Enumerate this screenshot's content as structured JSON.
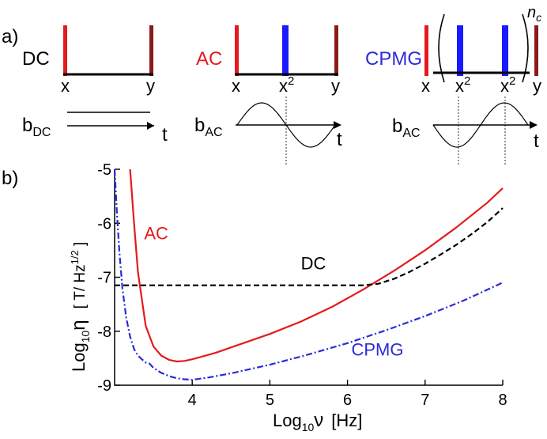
{
  "panel_a": {
    "label": "a)",
    "dc": {
      "name": "DC",
      "x": "x",
      "y": "y",
      "b": "b",
      "b_sub": "DC",
      "t": "t"
    },
    "ac": {
      "name": "AC",
      "x": "x",
      "mid": "x",
      "mid_sup": "2",
      "y": "y",
      "b": "b",
      "b_sub": "AC",
      "t": "t"
    },
    "cpmg": {
      "name": "CPMG",
      "x": "x",
      "mid1": "x",
      "mid1_sup": "2",
      "mid2": "x",
      "mid2_sup": "2",
      "y": "y",
      "n": "n",
      "n_sub": "c",
      "b": "b",
      "b_sub": "AC",
      "t": "t"
    }
  },
  "panel_b": {
    "label": "b)"
  },
  "colors": {
    "ac": "#e41a1c",
    "cpmg": "#2b2bd6",
    "dc": "#000000",
    "dark_red": "#8b1a1a",
    "blue_pulse": "#1a1aff"
  },
  "chart_data": {
    "type": "line",
    "title": "",
    "xlabel": {
      "base": "Log",
      "sub": "10",
      "sym": "ν",
      "unit": "[Hz]"
    },
    "ylabel": {
      "base": "Log",
      "sub": "10",
      "sym": "η",
      "unit_pre": "[ T/ Hz",
      "unit_sup": "1/2",
      "unit_post": " ]"
    },
    "xlim": [
      3.0,
      8.0
    ],
    "ylim": [
      -9.0,
      -5.0
    ],
    "x_ticks": [
      4,
      5,
      6,
      7,
      8
    ],
    "y_ticks": [
      -9,
      -8,
      -7,
      -6,
      -5
    ],
    "grid": false,
    "series": [
      {
        "name": "AC",
        "color": "#e41a1c",
        "style": "solid",
        "x": [
          3.2,
          3.25,
          3.3,
          3.4,
          3.5,
          3.6,
          3.7,
          3.8,
          3.9,
          4.0,
          4.3,
          4.6,
          5.0,
          5.4,
          5.8,
          6.2,
          6.6,
          7.0,
          7.4,
          7.8,
          8.0
        ],
        "y": [
          -5.0,
          -6.0,
          -6.9,
          -7.9,
          -8.28,
          -8.45,
          -8.53,
          -8.56,
          -8.55,
          -8.52,
          -8.4,
          -8.25,
          -8.05,
          -7.82,
          -7.55,
          -7.23,
          -6.88,
          -6.5,
          -6.08,
          -5.62,
          -5.35
        ]
      },
      {
        "name": "DC",
        "color": "#000000",
        "style": "dashed",
        "x": [
          3.0,
          3.5,
          4.0,
          5.0,
          6.0,
          6.2,
          6.4,
          6.6,
          6.8,
          7.0,
          7.2,
          7.4,
          7.6,
          7.8,
          8.0
        ],
        "y": [
          -7.15,
          -7.15,
          -7.15,
          -7.15,
          -7.15,
          -7.15,
          -7.12,
          -7.03,
          -6.9,
          -6.75,
          -6.58,
          -6.4,
          -6.2,
          -5.98,
          -5.72
        ]
      },
      {
        "name": "CPMG",
        "color": "#2b2bd6",
        "style": "dashdot",
        "x": [
          3.0,
          3.03,
          3.06,
          3.1,
          3.15,
          3.2,
          3.25,
          3.3,
          3.35,
          3.4,
          3.45,
          3.5,
          3.6,
          3.7,
          3.8,
          3.9,
          4.0,
          4.2,
          4.5,
          5.0,
          5.5,
          6.0,
          6.5,
          7.0,
          7.5,
          8.0
        ],
        "y": [
          -5.0,
          -5.8,
          -6.5,
          -7.2,
          -7.75,
          -8.1,
          -8.33,
          -8.45,
          -8.52,
          -8.58,
          -8.6,
          -8.68,
          -8.77,
          -8.83,
          -8.87,
          -8.89,
          -8.9,
          -8.86,
          -8.78,
          -8.62,
          -8.43,
          -8.22,
          -7.98,
          -7.72,
          -7.43,
          -7.1
        ]
      }
    ],
    "annotations": [
      {
        "text": "AC",
        "series": "AC"
      },
      {
        "text": "DC",
        "series": "DC"
      },
      {
        "text": "CPMG",
        "series": "CPMG"
      }
    ]
  }
}
